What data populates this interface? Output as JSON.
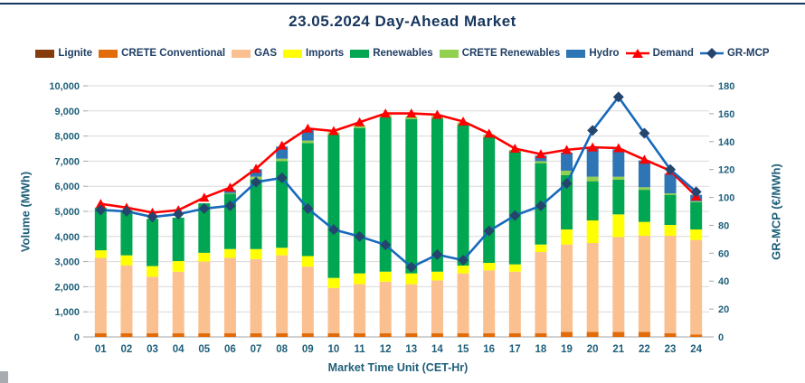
{
  "page": {
    "title": "23.05.2024  Day-Ahead Market"
  },
  "colors": {
    "title_text": "#17365D",
    "legend_text": "#1F3E64",
    "axis_text": "#1E5F7A",
    "gridline": "#D9D9D9",
    "baseline": "#A6A6A6"
  },
  "chart_data": {
    "type": "bar",
    "subtype": "stacked-bars-with-lines",
    "title": "23.05.2024  Day-Ahead Market",
    "xlabel": "Market Time Unit (CET-Hr)",
    "ylabel_left": "Volume (MWh)",
    "ylabel_right": "GR-MCP (€/MWh)",
    "y_left_range": [
      0,
      10000
    ],
    "y_left_step": 1000,
    "y_right_range": [
      0,
      180
    ],
    "y_right_step": 20,
    "grid": true,
    "legend_position": "top",
    "categories": [
      "01",
      "02",
      "03",
      "04",
      "05",
      "06",
      "07",
      "08",
      "09",
      "10",
      "11",
      "12",
      "13",
      "14",
      "15",
      "16",
      "17",
      "18",
      "19",
      "20",
      "21",
      "22",
      "23",
      "24"
    ],
    "stack_series": [
      {
        "name": "Lignite",
        "color": "#843C0C",
        "values": [
          0,
          0,
          0,
          0,
          0,
          0,
          0,
          0,
          0,
          0,
          0,
          0,
          0,
          0,
          0,
          0,
          0,
          0,
          0,
          0,
          0,
          0,
          0,
          0
        ]
      },
      {
        "name": "CRETE Conventional",
        "color": "#E36C0A",
        "values": [
          150,
          150,
          150,
          150,
          150,
          150,
          150,
          150,
          150,
          150,
          150,
          150,
          150,
          150,
          150,
          150,
          150,
          150,
          200,
          200,
          200,
          200,
          150,
          100
        ]
      },
      {
        "name": "GAS",
        "color": "#FAC090",
        "values": [
          3000,
          2700,
          2250,
          2450,
          2850,
          3000,
          2950,
          3100,
          2650,
          1800,
          1950,
          2050,
          1950,
          2100,
          2380,
          2500,
          2450,
          3230,
          3480,
          3540,
          3780,
          3830,
          3880,
          3760
        ]
      },
      {
        "name": "Imports",
        "color": "#FFFF00",
        "values": [
          300,
          400,
          420,
          420,
          350,
          350,
          400,
          300,
          420,
          400,
          430,
          400,
          430,
          350,
          310,
          300,
          290,
          300,
          600,
          900,
          900,
          550,
          430,
          420
        ]
      },
      {
        "name": "Renewables",
        "color": "#00A651",
        "values": [
          1700,
          1800,
          1880,
          1730,
          1970,
          2200,
          2780,
          3450,
          4500,
          5700,
          5790,
          6140,
          6150,
          6100,
          5600,
          5000,
          4510,
          3240,
          2160,
          1560,
          1380,
          1280,
          1200,
          1080
        ]
      },
      {
        "name": "CRETE Renewables",
        "color": "#92D050",
        "values": [
          0,
          0,
          0,
          0,
          0,
          30,
          100,
          100,
          100,
          100,
          100,
          100,
          100,
          100,
          100,
          110,
          50,
          80,
          180,
          180,
          120,
          100,
          60,
          40
        ]
      },
      {
        "name": "Hydro",
        "color": "#2E75B6",
        "values": [
          0,
          0,
          0,
          0,
          0,
          120,
          300,
          480,
          430,
          0,
          0,
          0,
          0,
          0,
          0,
          0,
          0,
          220,
          720,
          1120,
          1090,
          1070,
          780,
          260
        ]
      }
    ],
    "line_series": [
      {
        "name": "Demand",
        "axis": "left",
        "color": "#FF0000",
        "marker": "triangle",
        "marker_color": "#FF0000",
        "values": [
          5300,
          5150,
          4950,
          5050,
          5550,
          5950,
          6700,
          7620,
          8300,
          8200,
          8550,
          8900,
          8900,
          8850,
          8580,
          8100,
          7500,
          7280,
          7450,
          7550,
          7520,
          7060,
          6620,
          5600
        ]
      },
      {
        "name": "GR-MCP",
        "axis": "right",
        "color": "#1669BB",
        "marker": "diamond",
        "marker_color": "#24456E",
        "values": [
          91,
          90,
          86,
          88,
          92,
          94,
          111,
          114,
          92,
          77,
          72,
          66,
          50,
          59,
          55,
          76,
          87,
          94,
          110,
          148,
          172,
          146,
          120,
          104
        ]
      }
    ]
  }
}
